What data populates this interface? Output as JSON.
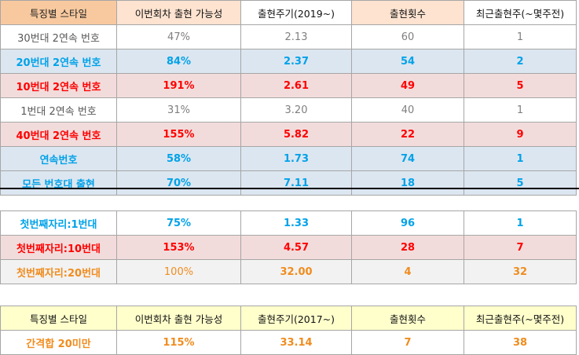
{
  "table1": {
    "headers": [
      "특징별 스타일",
      "이번회차 출현 가능성",
      "출현주기(2019~)",
      "출현횟수",
      "최근출현주(~몇주전)"
    ],
    "rows": [
      [
        "30번대 2연속 번호",
        "47%",
        "2.13",
        "60",
        "1"
      ],
      [
        "20번대 2연속 번호",
        "84%",
        "2.37",
        "54",
        "2"
      ],
      [
        "10번대 2연속 번호",
        "191%",
        "2.61",
        "49",
        "5"
      ],
      [
        "1번대 2연속 번호",
        "31%",
        "3.20",
        "40",
        "1"
      ],
      [
        "40번대 2연속 번호",
        "155%",
        "5.82",
        "22",
        "9"
      ],
      [
        "연속번호",
        "58%",
        "1.73",
        "74",
        "1"
      ],
      [
        "모든 번호대 출현",
        "70%",
        "7.11",
        "18",
        "5"
      ]
    ]
  },
  "table2": {
    "rows": [
      [
        "첫번째자리:1번대",
        "75%",
        "1.33",
        "96",
        "1"
      ],
      [
        "첫번째자리:10번대",
        "153%",
        "4.57",
        "28",
        "7"
      ],
      [
        "첫번째자리:20번대",
        "100%",
        "32.00",
        "4",
        "32"
      ]
    ]
  },
  "table3": {
    "headers": [
      "특징별 스타일",
      "이번회차 출현 가능성",
      "출현주기(2017~)",
      "출현횟수",
      "최근출현주(~몇주전)"
    ],
    "rows": [
      [
        "간격합 20미만",
        "115%",
        "33.14",
        "7",
        "38"
      ]
    ]
  }
}
